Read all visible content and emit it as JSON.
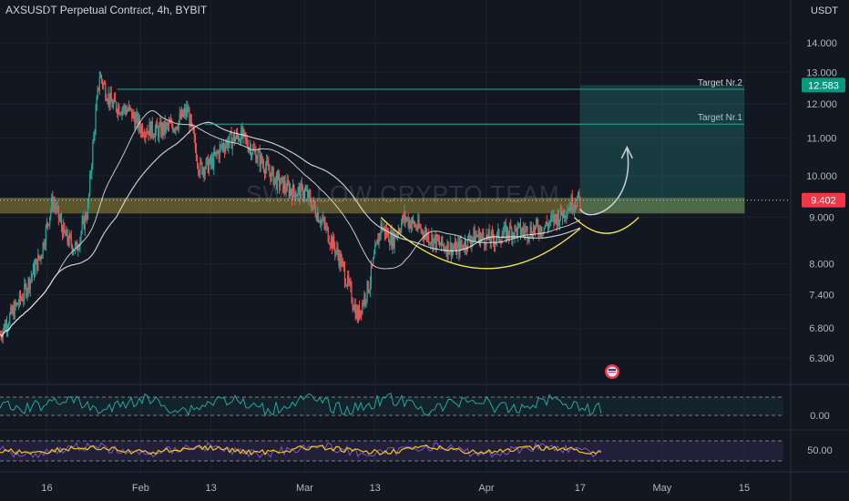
{
  "header": {
    "title": "AXSUSDT Perpetual Contract, 4h, BYBIT",
    "currency": "USDT"
  },
  "watermark": "SWALLOW CRYPTO TEAM",
  "colors": {
    "background": "#131722",
    "up": "#26a69a",
    "down": "#ef5350",
    "ma": "#e8e8e8",
    "zone": "#b4a43a",
    "target_line": "#26a69a",
    "projection": "#26a69a",
    "cup": "#f5e84a",
    "rsi": "#26a69a",
    "stoch": "#7e57c2",
    "stoch_signal": "#f5c518",
    "price_badge_red": "#f23645",
    "price_badge_green": "#089981"
  },
  "chart_data": [
    {
      "type": "candlestick",
      "title": "AXSUSDT Perpetual Contract, 4h, BYBIT",
      "x_ticks": [
        "16",
        "Feb",
        "13",
        "Mar",
        "13",
        "Apr",
        "17",
        "May",
        "15"
      ],
      "y_ticks": [
        "14.000",
        "13.000",
        "12.000",
        "11.000",
        "10.000",
        "9.000",
        "8.000",
        "7.400",
        "6.800",
        "6.300"
      ],
      "y_scale": "log",
      "ylim": [
        5.95,
        14.7
      ],
      "x_start": "2023-01-08",
      "x_end": "2023-05-22",
      "approx_daily_close": [
        {
          "date": "2023-01-08",
          "close": 6.7
        },
        {
          "date": "2023-01-12",
          "close": 7.4
        },
        {
          "date": "2023-01-15",
          "close": 8.2
        },
        {
          "date": "2023-01-17",
          "close": 9.4
        },
        {
          "date": "2023-01-19",
          "close": 8.6
        },
        {
          "date": "2023-01-21",
          "close": 8.3
        },
        {
          "date": "2023-01-23",
          "close": 9.2
        },
        {
          "date": "2023-01-25",
          "close": 12.9
        },
        {
          "date": "2023-01-27",
          "close": 12.0
        },
        {
          "date": "2023-01-30",
          "close": 11.8
        },
        {
          "date": "2023-02-01",
          "close": 11.3
        },
        {
          "date": "2023-02-04",
          "close": 11.2
        },
        {
          "date": "2023-02-07",
          "close": 11.4
        },
        {
          "date": "2023-02-09",
          "close": 11.8
        },
        {
          "date": "2023-02-11",
          "close": 10.2
        },
        {
          "date": "2023-02-13",
          "close": 10.3
        },
        {
          "date": "2023-02-15",
          "close": 10.8
        },
        {
          "date": "2023-02-18",
          "close": 11.1
        },
        {
          "date": "2023-02-21",
          "close": 10.5
        },
        {
          "date": "2023-02-24",
          "close": 9.9
        },
        {
          "date": "2023-02-27",
          "close": 9.6
        },
        {
          "date": "2023-03-01",
          "close": 9.6
        },
        {
          "date": "2023-03-04",
          "close": 8.9
        },
        {
          "date": "2023-03-07",
          "close": 8.1
        },
        {
          "date": "2023-03-10",
          "close": 7.0
        },
        {
          "date": "2023-03-12",
          "close": 7.6
        },
        {
          "date": "2023-03-14",
          "close": 8.8
        },
        {
          "date": "2023-03-16",
          "close": 8.5
        },
        {
          "date": "2023-03-18",
          "close": 9.0
        },
        {
          "date": "2023-03-21",
          "close": 8.7
        },
        {
          "date": "2023-03-24",
          "close": 8.4
        },
        {
          "date": "2023-03-27",
          "close": 8.3
        },
        {
          "date": "2023-03-30",
          "close": 8.6
        },
        {
          "date": "2023-04-02",
          "close": 8.5
        },
        {
          "date": "2023-04-05",
          "close": 8.7
        },
        {
          "date": "2023-04-08",
          "close": 8.7
        },
        {
          "date": "2023-04-11",
          "close": 8.8
        },
        {
          "date": "2023-04-14",
          "close": 9.1
        },
        {
          "date": "2023-04-16",
          "close": 9.4
        }
      ],
      "last_price": "9.402",
      "target_price": "12.583",
      "annotations": [
        {
          "label": "Target Nr.2",
          "price": 12.45
        },
        {
          "label": "Target Nr.1",
          "price": 11.4
        }
      ],
      "zone": {
        "low": 9.1,
        "high": 9.45
      },
      "grid": true,
      "legend": "none"
    },
    {
      "type": "line",
      "title": "",
      "y_ticks": [
        "0.00"
      ],
      "note": "oscillator pane 1"
    },
    {
      "type": "line",
      "title": "",
      "y_ticks": [
        "50.00"
      ],
      "note": "oscillator pane 2"
    }
  ]
}
